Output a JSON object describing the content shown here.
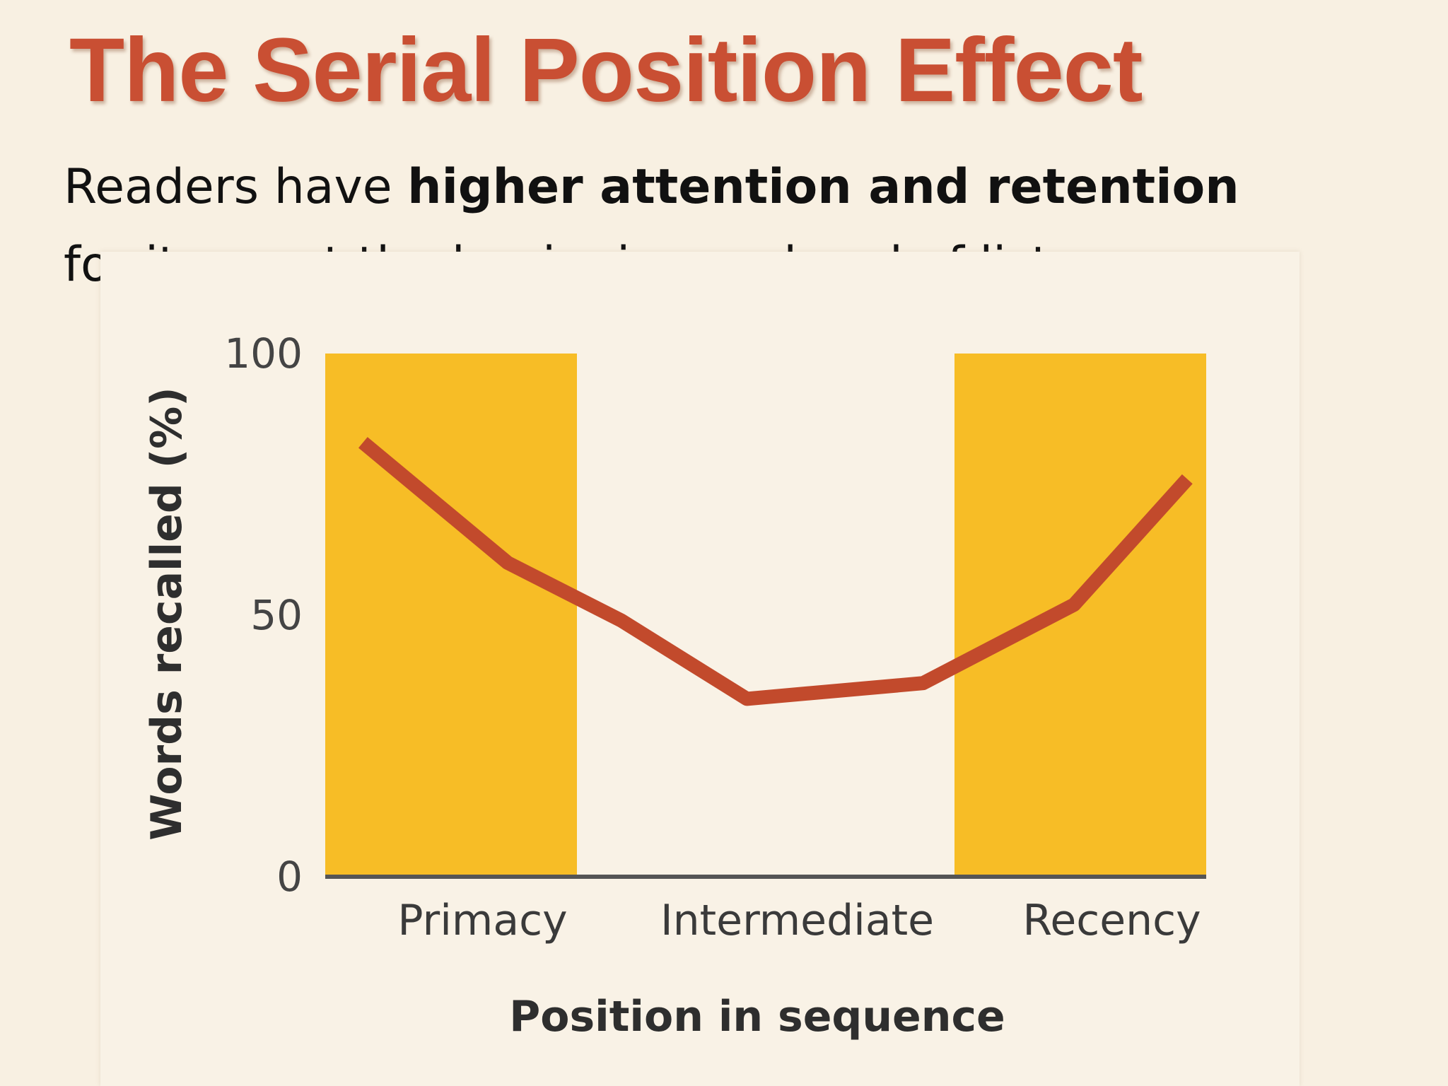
{
  "slide": {
    "title": "The Serial Position Effect",
    "subtitle": {
      "line1_pre": "Readers have ",
      "line1_bold": "higher attention and retention",
      "line2": "for items at the beginning and end of lists"
    }
  },
  "colors": {
    "title": "#c94f33",
    "band": "#f7bd26",
    "line": "#c24a2c",
    "axis": "#555555",
    "background": "#f8f0e2"
  },
  "chart_data": {
    "type": "line",
    "title": "",
    "xlabel": "Position in sequence",
    "ylabel": "Words recalled (%)",
    "ylim": [
      0,
      100
    ],
    "yticks": [
      0,
      50,
      100
    ],
    "xlim": [
      1,
      15
    ],
    "categories": [
      "Primacy",
      "Intermediate",
      "Recency"
    ],
    "category_centers": [
      3.5,
      8.5,
      13.5
    ],
    "shaded_regions": [
      {
        "name": "Primacy",
        "x_start": 1,
        "x_end": 5
      },
      {
        "name": "Recency",
        "x_start": 11,
        "x_end": 15
      }
    ],
    "series": [
      {
        "x": [
          1.6,
          3.9,
          5.7,
          7.7,
          10.5,
          12.9,
          14.7
        ],
        "values": [
          83,
          60,
          49,
          34,
          37,
          52,
          76
        ]
      }
    ],
    "grid": false,
    "legend": "none"
  }
}
